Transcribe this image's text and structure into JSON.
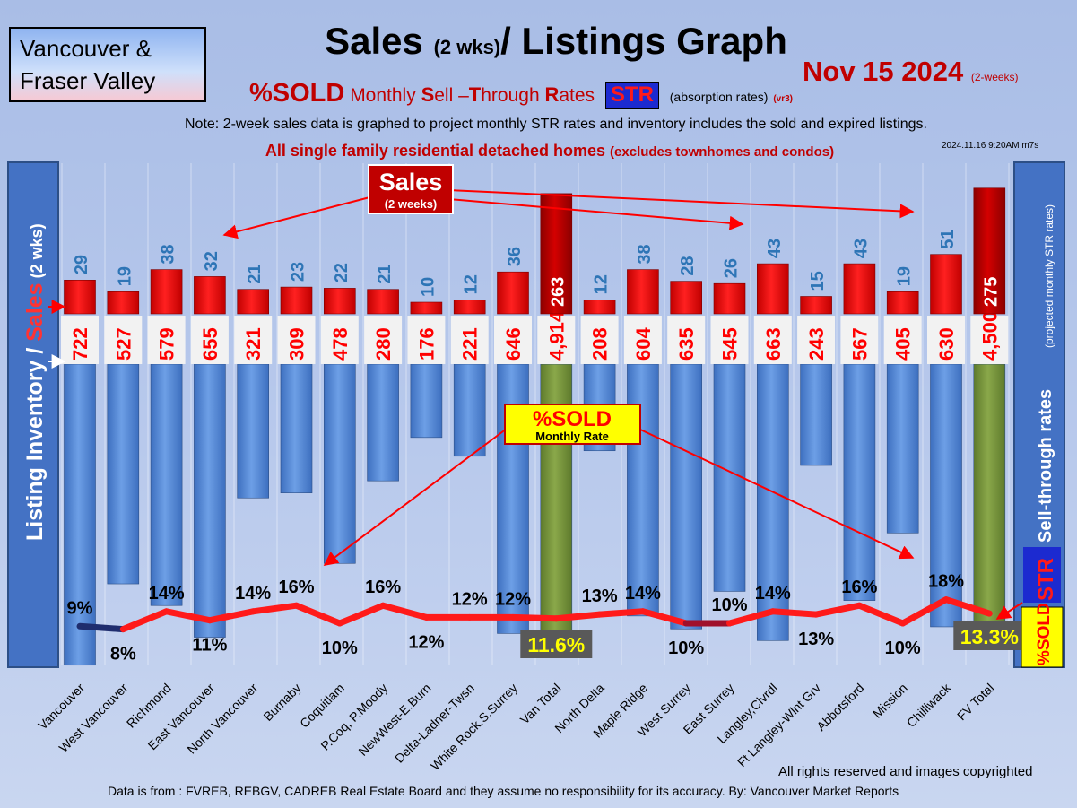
{
  "region_label": "Vancouver & Fraser Valley",
  "title_main": "Sales",
  "title_small": "(2 wks)",
  "title_rest": "/ Listings Graph",
  "date_main": "Nov 15  2024",
  "date_small": "(2-weeks)",
  "subtitle": {
    "sold": "%SOLD",
    "monthly": "Monthly",
    "s": "S",
    "ell": "ell –",
    "t": "T",
    "hrough": "hrough",
    "r": "R",
    "ates": "ates",
    "str": "STR",
    "absorption": "(absorption rates)",
    "version": "(vr3)"
  },
  "note": "Note: 2-week sales data is graphed to project monthly STR rates and inventory includes the sold and expired listings.",
  "scope_main": "All single family residential detached homes",
  "scope_small": "(excludes townhomes and condos)",
  "stamp": "2024.11.16 9:20AM m7s",
  "callouts": {
    "sales_title": "Sales",
    "sales_sub": "(2 weeks)",
    "sold_title": "%SOLD",
    "sold_sub": "Monthly Rate"
  },
  "left_axis": {
    "part1": "Listing Inventory / ",
    "part2": "Sales",
    "part3": " (2 wks)"
  },
  "right_axis": {
    "sold": "%SOLD",
    "str": "STR",
    "main": " Sell-through rates",
    "sub": "(projected monthly STR rates)"
  },
  "credits": {
    "rights": "All rights reserved and  images copyrighted",
    "source": "Data is from : FVREB, REBGV, CADREB Real Estate Board and they assume no responsibility for its accuracy. By: Vancouver Market Reports"
  },
  "colors": {
    "sales_bar": "#ff0000",
    "total_sales_bar": "#c00000",
    "inventory_bar": "#5b8fd9",
    "total_inventory_bar": "#76923c",
    "sales_label": "#2e75b6",
    "inventory_label": "#ff0000",
    "line_high": "#ff1a1a",
    "line_low": "#1f2d6e"
  },
  "chart_data": {
    "type": "bar",
    "categories": [
      "Vancouver",
      "West Vancouver",
      "Richmond",
      "East Vancouver",
      "North Vancouver",
      "Burnaby",
      "Coquitlam",
      "P.Coq, P.Moody",
      "NewWest-E.Burn",
      "Delta-Ladner-Twsn",
      "White Rock.S.Surrey",
      "Van Total",
      "North Delta",
      "Maple Ridge",
      "West Surrey",
      "East Surrey",
      "Langley,Clvrdl",
      "Ft Langley-Wlnt Grv",
      "Abbotsford",
      "Mission",
      "Chilliwack",
      "FV Total"
    ],
    "series": [
      {
        "values": [
          29,
          19,
          38,
          32,
          21,
          23,
          22,
          21,
          10,
          12,
          36,
          263,
          12,
          38,
          28,
          26,
          43,
          15,
          43,
          19,
          51,
          275
        ],
        "labels": [
          "29",
          "19",
          "38",
          "32",
          "21",
          "23",
          "22",
          "21",
          "10",
          "12",
          "36",
          "263",
          "12",
          "38",
          "28",
          "26",
          "43",
          "15",
          "43",
          "19",
          "51",
          "275"
        ]
      },
      {
        "values": [
          722,
          527,
          579,
          655,
          321,
          309,
          478,
          280,
          176,
          221,
          646,
          4914,
          208,
          604,
          635,
          545,
          663,
          243,
          567,
          405,
          630,
          4500
        ],
        "labels": [
          "722",
          "527",
          "579",
          "655",
          "321",
          "309",
          "478",
          "280",
          "176",
          "221",
          "646",
          "4,914",
          "208",
          "604",
          "635",
          "545",
          "663",
          "243",
          "567",
          "405",
          "630",
          "4,500"
        ]
      },
      {
        "values": [
          9,
          8,
          14,
          11,
          14,
          16,
          10,
          16,
          12,
          12,
          12,
          11.6,
          13,
          14,
          10,
          10,
          14,
          13,
          16,
          10,
          18,
          13.3
        ],
        "labels": [
          "9%",
          "8%",
          "14%",
          "11%",
          "14%",
          "16%",
          "10%",
          "16%",
          "12%",
          "12%",
          "12%",
          "11.6%",
          "13%",
          "14%",
          "10%",
          "10%",
          "14%",
          "13%",
          "16%",
          "10%",
          "18%",
          "13.3%"
        ]
      }
    ],
    "total_categories": [
      "Van Total",
      "FV Total"
    ]
  }
}
